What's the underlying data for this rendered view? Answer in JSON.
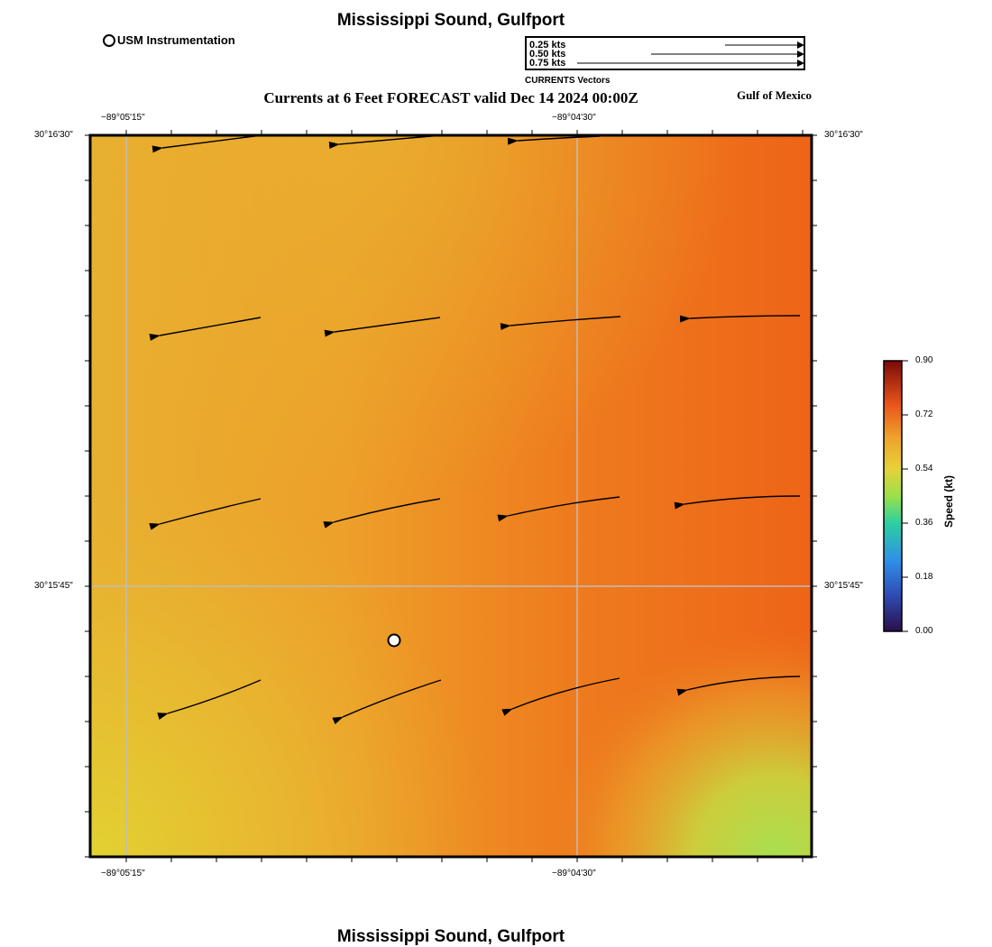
{
  "title_top": "Mississippi Sound, Gulfport",
  "title_bottom": "Mississippi Sound, Gulfport",
  "station_legend": {
    "label": "USM Instrumentation",
    "icon": "circle-marker-icon"
  },
  "vector_legend": {
    "rows": [
      "0.25 kts",
      "0.50 kts",
      "0.75 kts"
    ],
    "caption": "CURRENTS Vectors"
  },
  "subtitle": "Currents at 6 Feet FORECAST valid Dec 14 2024 00:00Z",
  "region_label": "Gulf of Mexico",
  "map_axes": {
    "top_ticks": [
      "−89°05'15\"",
      "−89°04'30\""
    ],
    "bottom_ticks": [
      "−89°05'15\"",
      "−89°04'30\""
    ],
    "left_ticks": [
      "30°16'30\"",
      "30°15'45\""
    ],
    "right_ticks": [
      "30°16'30\"",
      "30°15'45\""
    ]
  },
  "colorbar": {
    "label": "Speed (kt)",
    "ticks": [
      "0.90",
      "0.72",
      "0.54",
      "0.36",
      "0.18",
      "0.00"
    ],
    "range": [
      0,
      0.9
    ],
    "colors": [
      "#2a0f4a",
      "#2f6fd8",
      "#2bd0a0",
      "#9be04a",
      "#e6d23a",
      "#ee7d1e",
      "#e04a10",
      "#7a0a08"
    ]
  },
  "grid": true,
  "current_field_colors": {
    "west": "#e8b030",
    "east": "#ee6418",
    "southeast": "#a8e050",
    "southwest": "#e2d232"
  }
}
